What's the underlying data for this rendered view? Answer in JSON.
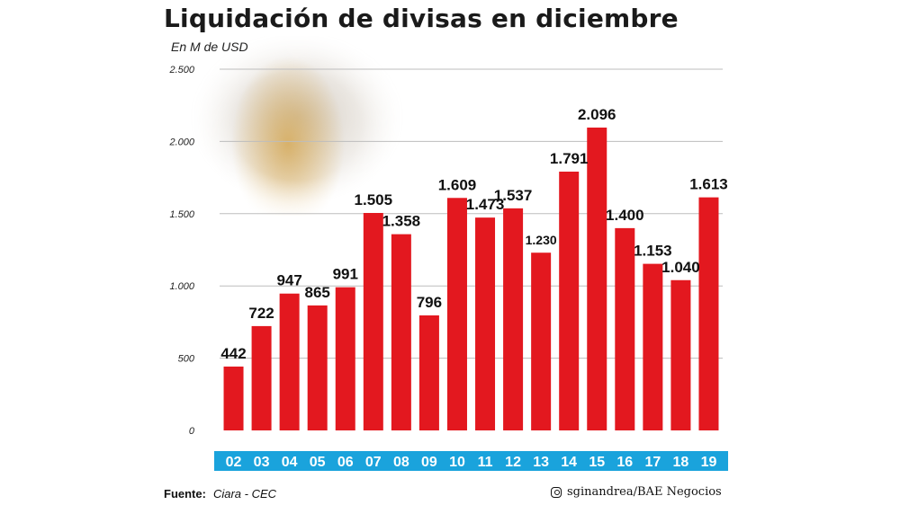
{
  "chart_data": {
    "type": "bar",
    "title": "Liquidación de divisas en diciembre",
    "subtitle": "En M de USD",
    "categories": [
      "02",
      "03",
      "04",
      "05",
      "06",
      "07",
      "08",
      "09",
      "10",
      "11",
      "12",
      "13",
      "14",
      "15",
      "16",
      "17",
      "18",
      "19"
    ],
    "values": [
      442,
      722,
      947,
      865,
      991,
      1505,
      1358,
      796,
      1609,
      1473,
      1537,
      1230,
      1791,
      2096,
      1400,
      1153,
      1040,
      1613
    ],
    "value_labels": [
      "442",
      "722",
      "947",
      "865",
      "991",
      "1.505",
      "1.358",
      "796",
      "1.609",
      "1.473",
      "1.537",
      "1.230",
      "1.791",
      "2.096",
      "1.400",
      "1.153",
      "1.040",
      "1.613"
    ],
    "y_ticks": [
      0,
      500,
      1000,
      1500,
      2000,
      2500
    ],
    "y_tick_labels": [
      "0",
      "500",
      "1.000",
      "1.500",
      "2.000",
      "2.500"
    ],
    "ylim": [
      0,
      2500
    ],
    "grid": true,
    "colors": {
      "bar": "#e3181f",
      "category_band": "#1aa3dc",
      "category_text": "#ffffff"
    }
  },
  "footer": {
    "source_label": "Fuente:",
    "source_value": "Ciara - CEC",
    "credit_icon": "instagram-icon",
    "credit": "sginandrea/BAE Negocios"
  }
}
